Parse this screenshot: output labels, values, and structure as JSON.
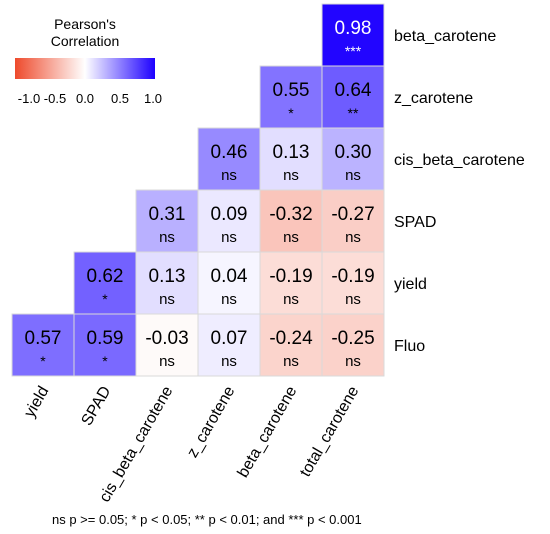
{
  "legend": {
    "title": "Pearson's Correlation",
    "ticks": [
      "-1.0",
      "-0.5",
      "0.0",
      "0.5",
      "1.0"
    ],
    "colors": {
      "low": "#ee4a2c",
      "mid": "#ffffff",
      "high": "#1d00ff"
    }
  },
  "footnote": "ns p >= 0.05; * p < 0.05; ** p < 0.01; and *** p < 0.001",
  "chart_data": {
    "type": "heatmap",
    "title": "",
    "columns": [
      "yield",
      "SPAD",
      "cis_beta_carotene",
      "z_carotene",
      "beta_carotene",
      "total_carotene"
    ],
    "rows": [
      "beta_carotene",
      "z_carotene",
      "cis_beta_carotene",
      "SPAD",
      "yield",
      "Fluo"
    ],
    "value_range": [
      -1.0,
      1.0
    ],
    "cells": [
      {
        "row": "beta_carotene",
        "col": "total_carotene",
        "value": "0.98",
        "sig": "***"
      },
      {
        "row": "z_carotene",
        "col": "beta_carotene",
        "value": "0.55",
        "sig": "*"
      },
      {
        "row": "z_carotene",
        "col": "total_carotene",
        "value": "0.64",
        "sig": "**"
      },
      {
        "row": "cis_beta_carotene",
        "col": "z_carotene",
        "value": "0.46",
        "sig": "ns"
      },
      {
        "row": "cis_beta_carotene",
        "col": "beta_carotene",
        "value": "0.13",
        "sig": "ns"
      },
      {
        "row": "cis_beta_carotene",
        "col": "total_carotene",
        "value": "0.30",
        "sig": "ns"
      },
      {
        "row": "SPAD",
        "col": "cis_beta_carotene",
        "value": "0.31",
        "sig": "ns"
      },
      {
        "row": "SPAD",
        "col": "z_carotene",
        "value": "0.09",
        "sig": "ns"
      },
      {
        "row": "SPAD",
        "col": "beta_carotene",
        "value": "-0.32",
        "sig": "ns"
      },
      {
        "row": "SPAD",
        "col": "total_carotene",
        "value": "-0.27",
        "sig": "ns"
      },
      {
        "row": "yield",
        "col": "SPAD",
        "value": "0.62",
        "sig": "*"
      },
      {
        "row": "yield",
        "col": "cis_beta_carotene",
        "value": "0.13",
        "sig": "ns"
      },
      {
        "row": "yield",
        "col": "z_carotene",
        "value": "0.04",
        "sig": "ns"
      },
      {
        "row": "yield",
        "col": "beta_carotene",
        "value": "-0.19",
        "sig": "ns"
      },
      {
        "row": "yield",
        "col": "total_carotene",
        "value": "-0.19",
        "sig": "ns"
      },
      {
        "row": "Fluo",
        "col": "yield",
        "value": "0.57",
        "sig": "*"
      },
      {
        "row": "Fluo",
        "col": "SPAD",
        "value": "0.59",
        "sig": "*"
      },
      {
        "row": "Fluo",
        "col": "cis_beta_carotene",
        "value": "-0.03",
        "sig": "ns"
      },
      {
        "row": "Fluo",
        "col": "z_carotene",
        "value": "0.07",
        "sig": "ns"
      },
      {
        "row": "Fluo",
        "col": "beta_carotene",
        "value": "-0.24",
        "sig": "ns"
      },
      {
        "row": "Fluo",
        "col": "total_carotene",
        "value": "-0.25",
        "sig": "ns"
      }
    ]
  }
}
